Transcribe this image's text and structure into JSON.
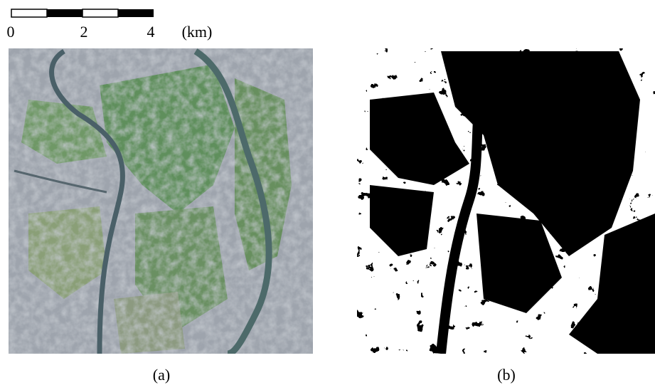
{
  "scale_bar": {
    "labels": [
      "0",
      "2",
      "4"
    ],
    "unit": "(km)"
  },
  "panels": [
    {
      "label": "(a)"
    },
    {
      "label": "(b)"
    }
  ]
}
